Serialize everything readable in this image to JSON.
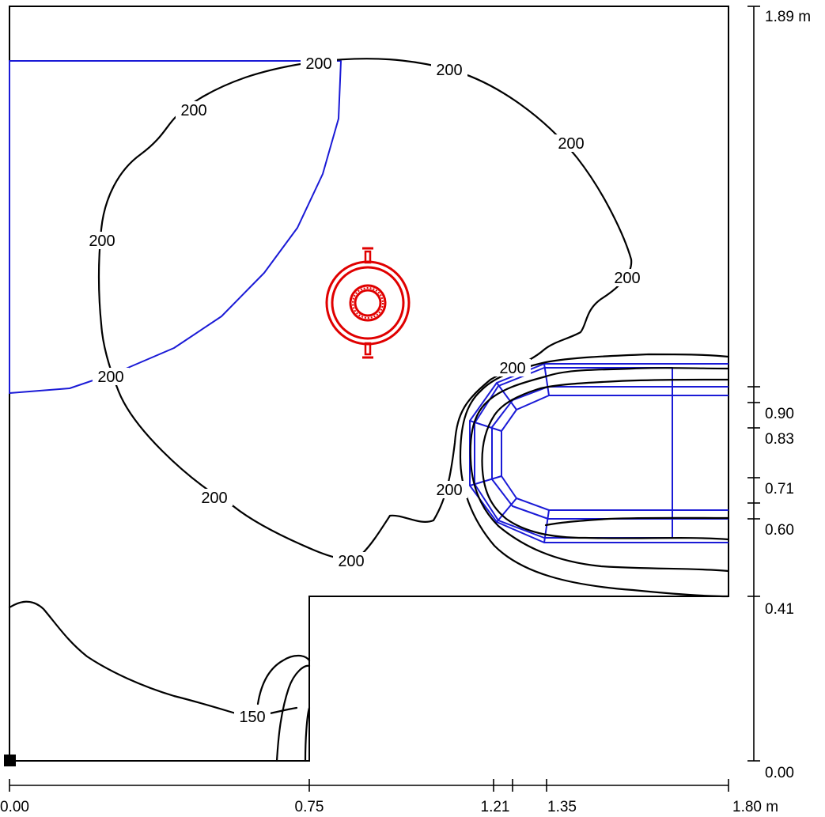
{
  "units": "m",
  "x_axis": {
    "ticks": [
      "0.00",
      "0.75",
      "1.21",
      "1.35",
      "1.80 m"
    ]
  },
  "y_axis": {
    "ticks": [
      "1.89 m",
      "0.90",
      "0.83",
      "0.71",
      "0.60",
      "0.41",
      "0.00"
    ]
  },
  "isolines": {
    "labels": [
      "200",
      "200",
      "200",
      "200",
      "200",
      "200",
      "200",
      "200",
      "200",
      "200",
      "150"
    ]
  },
  "colors": {
    "room_outline": "#000000",
    "isoline": "#000000",
    "furniture": "#1a1ad6",
    "luminaire": "#e00000"
  },
  "icons": {
    "luminaire": "luminaire-icon",
    "origin_marker": "origin-marker-icon"
  }
}
